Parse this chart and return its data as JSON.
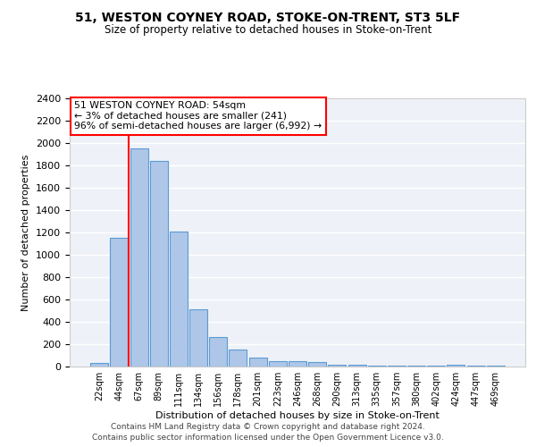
{
  "title1": "51, WESTON COYNEY ROAD, STOKE-ON-TRENT, ST3 5LF",
  "title2": "Size of property relative to detached houses in Stoke-on-Trent",
  "xlabel": "Distribution of detached houses by size in Stoke-on-Trent",
  "ylabel": "Number of detached properties",
  "footer1": "Contains HM Land Registry data © Crown copyright and database right 2024.",
  "footer2": "Contains public sector information licensed under the Open Government Licence v3.0.",
  "bar_labels": [
    "22sqm",
    "44sqm",
    "67sqm",
    "89sqm",
    "111sqm",
    "134sqm",
    "156sqm",
    "178sqm",
    "201sqm",
    "223sqm",
    "246sqm",
    "268sqm",
    "290sqm",
    "313sqm",
    "335sqm",
    "357sqm",
    "380sqm",
    "402sqm",
    "424sqm",
    "447sqm",
    "469sqm"
  ],
  "bar_values": [
    30,
    1150,
    1950,
    1840,
    1210,
    510,
    265,
    155,
    80,
    50,
    45,
    40,
    20,
    15,
    5,
    5,
    5,
    5,
    20,
    5,
    5
  ],
  "bar_color": "#aec6e8",
  "bar_edge_color": "#5b9bd5",
  "bg_color": "#eef2f8",
  "grid_color": "#ffffff",
  "annotation_text1": "51 WESTON COYNEY ROAD: 54sqm",
  "annotation_text2": "← 3% of detached houses are smaller (241)",
  "annotation_text3": "96% of semi-detached houses are larger (6,992) →",
  "red_line_x": 1.5,
  "ylim": [
    0,
    2400
  ],
  "yticks": [
    0,
    200,
    400,
    600,
    800,
    1000,
    1200,
    1400,
    1600,
    1800,
    2000,
    2200,
    2400
  ]
}
